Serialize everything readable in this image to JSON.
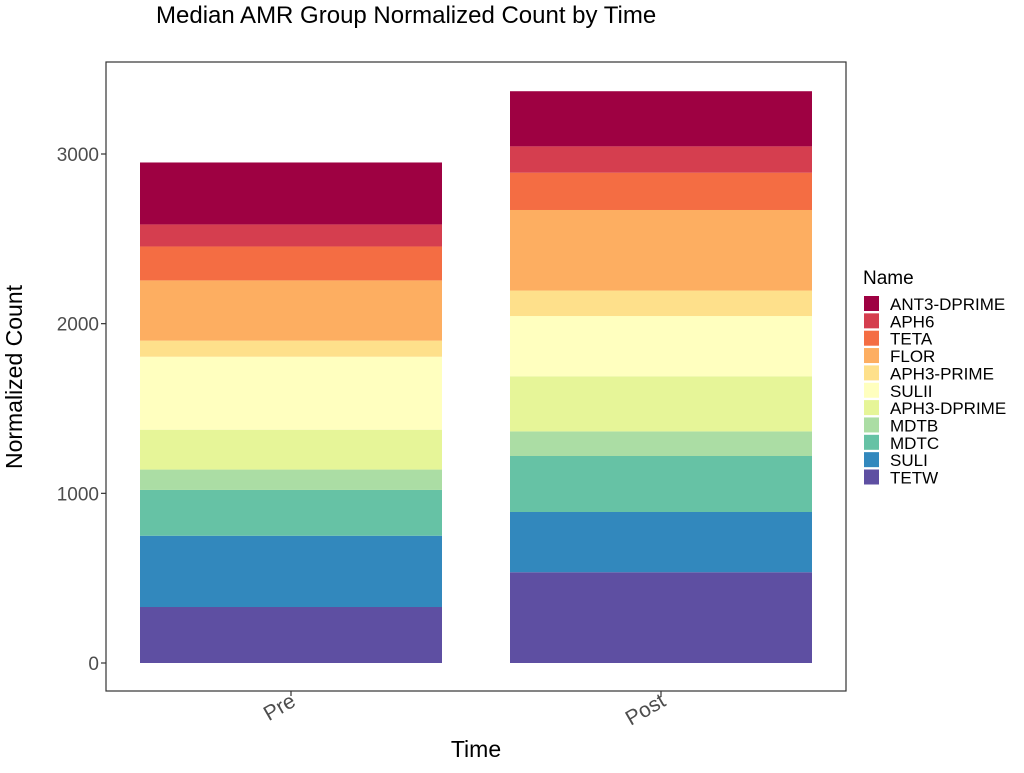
{
  "chart_data": {
    "type": "bar",
    "stacked": true,
    "title": "Median AMR Group Normalized Count by Time",
    "xlabel": "Time",
    "ylabel": "Normalized Count",
    "categories": [
      "Pre",
      "Post"
    ],
    "ylim": [
      -170,
      3550
    ],
    "yticks": [
      0,
      1000,
      2000,
      3000
    ],
    "legend": {
      "title": "Name",
      "position": "right"
    },
    "series": [
      {
        "name": "TETW",
        "color": "#5E4FA2",
        "values": [
          330,
          535
        ]
      },
      {
        "name": "SULI",
        "color": "#3288BD",
        "values": [
          420,
          355
        ]
      },
      {
        "name": "MDTC",
        "color": "#66C2A5",
        "values": [
          270,
          330
        ]
      },
      {
        "name": "MDTB",
        "color": "#ABDDA4",
        "values": [
          120,
          145
        ]
      },
      {
        "name": "APH3-DPRIME",
        "color": "#E6F598",
        "values": [
          235,
          325
        ]
      },
      {
        "name": "SULII",
        "color": "#FFFFBF",
        "values": [
          430,
          355
        ]
      },
      {
        "name": "APH3-PRIME",
        "color": "#FEE08B",
        "values": [
          95,
          150
        ]
      },
      {
        "name": "FLOR",
        "color": "#FDAE61",
        "values": [
          355,
          475
        ]
      },
      {
        "name": "TETA",
        "color": "#F46D43",
        "values": [
          200,
          220
        ]
      },
      {
        "name": "APH6",
        "color": "#D53E4F",
        "values": [
          130,
          155
        ]
      },
      {
        "name": "ANT3-DPRIME",
        "color": "#9E0142",
        "values": [
          365,
          325
        ]
      }
    ]
  }
}
